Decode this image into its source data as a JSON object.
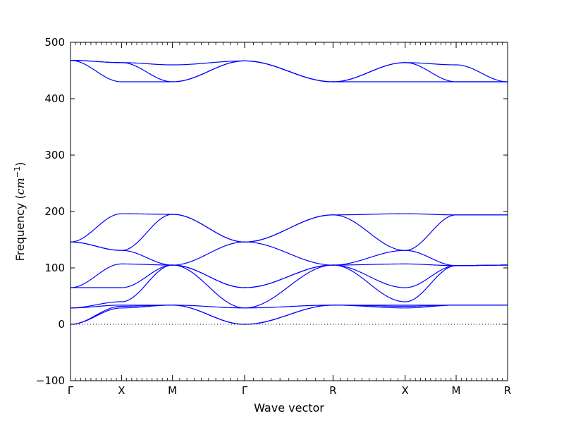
{
  "chart_data": {
    "type": "line",
    "title": "",
    "xlabel": "Wave vector",
    "ylabel_text": "Frequency (",
    "ylabel_unit_base": "cm",
    "ylabel_unit_exp": "−1",
    "ylabel_close": ")",
    "ylim": [
      -100,
      500
    ],
    "yticks": [
      -100,
      0,
      100,
      200,
      300,
      400,
      500
    ],
    "ytick_labels": [
      "−100",
      "0",
      "100",
      "200",
      "300",
      "400",
      "500"
    ],
    "xlim": [
      0,
      1
    ],
    "kpoints": [
      {
        "label": "Γ",
        "x": 0.0
      },
      {
        "label": "X",
        "x": 0.1167
      },
      {
        "label": "M",
        "x": 0.2333
      },
      {
        "label": "Γ",
        "x": 0.3984
      },
      {
        "label": "R",
        "x": 0.6006
      },
      {
        "label": "X",
        "x": 0.7656
      },
      {
        "label": "M",
        "x": 0.8823
      },
      {
        "label": "R",
        "x": 1.0
      }
    ],
    "zero_line": true,
    "grid": false,
    "line_color": "#0000ff",
    "series": [
      {
        "values": [
          468,
          464,
          430,
          467,
          430,
          464,
          430,
          430
        ]
      },
      {
        "values": [
          468,
          464,
          460,
          467,
          430,
          464,
          460,
          430
        ]
      },
      {
        "values": [
          468,
          430,
          430,
          467,
          430,
          430,
          430,
          430
        ]
      },
      {
        "values": [
          146,
          196,
          195,
          146,
          194,
          196,
          194,
          194
        ]
      },
      {
        "values": [
          146,
          131,
          195,
          146,
          194,
          131,
          194,
          194
        ]
      },
      {
        "values": [
          146,
          131,
          105,
          146,
          105,
          131,
          104,
          105
        ]
      },
      {
        "values": [
          65,
          107,
          105,
          65,
          105,
          107,
          104,
          105
        ]
      },
      {
        "values": [
          65,
          65,
          105,
          65,
          105,
          65,
          104,
          105
        ]
      },
      {
        "values": [
          29,
          40,
          105,
          29,
          105,
          40,
          104,
          105
        ]
      },
      {
        "values": [
          29,
          34,
          34,
          29,
          34,
          34,
          34,
          34
        ]
      },
      {
        "values": [
          0,
          32,
          34,
          0,
          34,
          32,
          34,
          34
        ]
      },
      {
        "values": [
          0,
          29,
          34,
          0,
          34,
          29,
          34,
          34
        ]
      }
    ]
  }
}
